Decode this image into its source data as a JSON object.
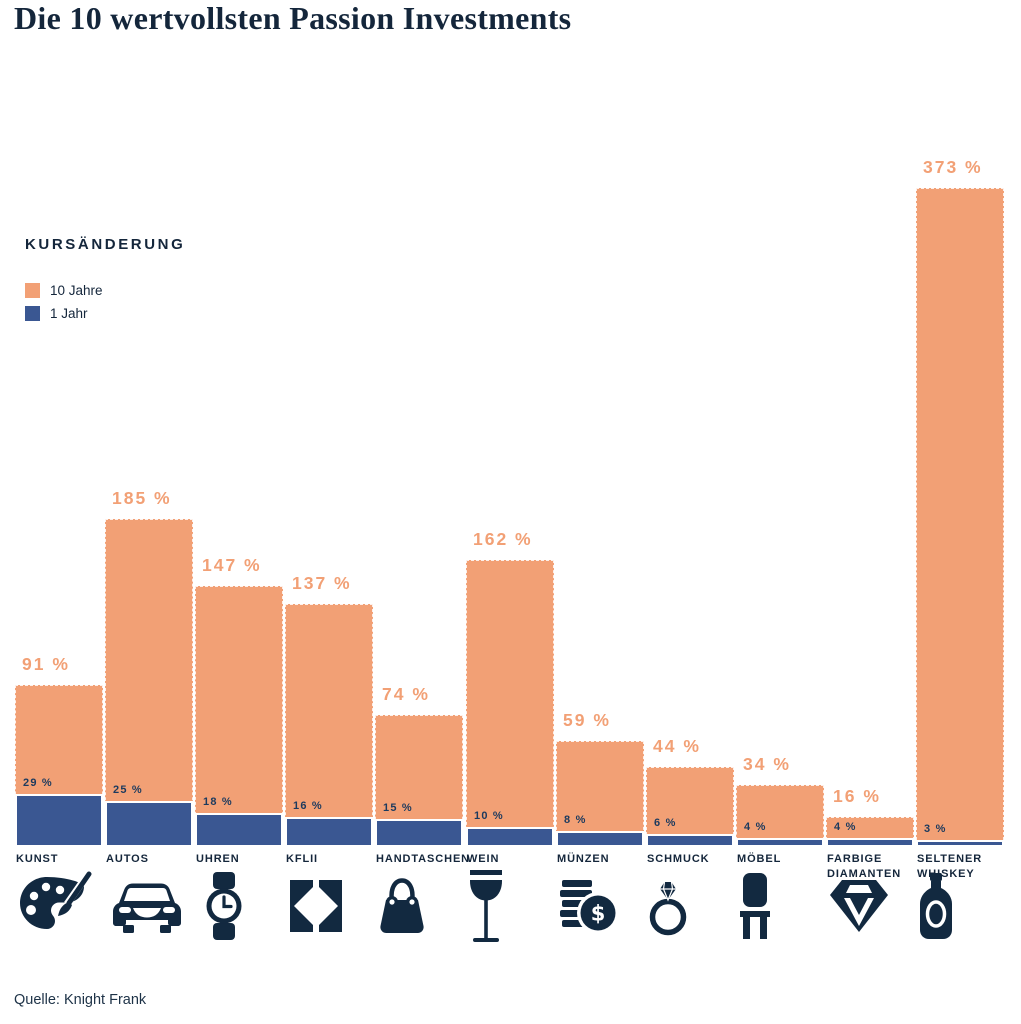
{
  "title": "Die 10 wertvollsten Passion Investments",
  "legend": {
    "heading": "KURSÄNDERUNG",
    "items": [
      {
        "label": "10 Jahre",
        "color": "#F2A075"
      },
      {
        "label": "1 Jahr",
        "color": "#3A5792"
      }
    ]
  },
  "source": "Quelle: Knight Frank",
  "colors": {
    "orange": "#F2A075",
    "blue": "#3A5792",
    "navy_text": "#14263B",
    "blue_value_label": "#1C3A5E",
    "icon": "#122940",
    "background": "#FFFFFF"
  },
  "chart_data": {
    "type": "bar",
    "title": "Die 10 wertvollsten Passion Investments",
    "subtitle": "",
    "xlabel": "",
    "ylabel": "Kursänderung (%)",
    "ylim": [
      0,
      373
    ],
    "grid": false,
    "legend_position": "upper-left",
    "value_suffix": " %",
    "categories": [
      "KUNST",
      "AUTOS",
      "UHREN",
      "KFLII",
      "HANDTASCHEN",
      "WEIN",
      "MÜNZEN",
      "SCHMUCK",
      "MÖBEL",
      "FARBIGE DIAMANTEN",
      "SELTENER WHISKEY"
    ],
    "series": [
      {
        "name": "10 Jahre",
        "color": "#F2A075",
        "values": [
          91,
          185,
          147,
          137,
          74,
          162,
          59,
          44,
          34,
          16,
          373
        ]
      },
      {
        "name": "1 Jahr",
        "color": "#3A5792",
        "values": [
          29,
          25,
          18,
          16,
          15,
          10,
          8,
          6,
          4,
          4,
          3
        ]
      }
    ],
    "icons": [
      "palette-icon",
      "car-icon",
      "watch-icon",
      "kflii-icon",
      "handbag-icon",
      "wine-glass-icon",
      "coins-icon",
      "ring-icon",
      "chair-icon",
      "diamond-icon",
      "whiskey-bottle-icon"
    ]
  }
}
